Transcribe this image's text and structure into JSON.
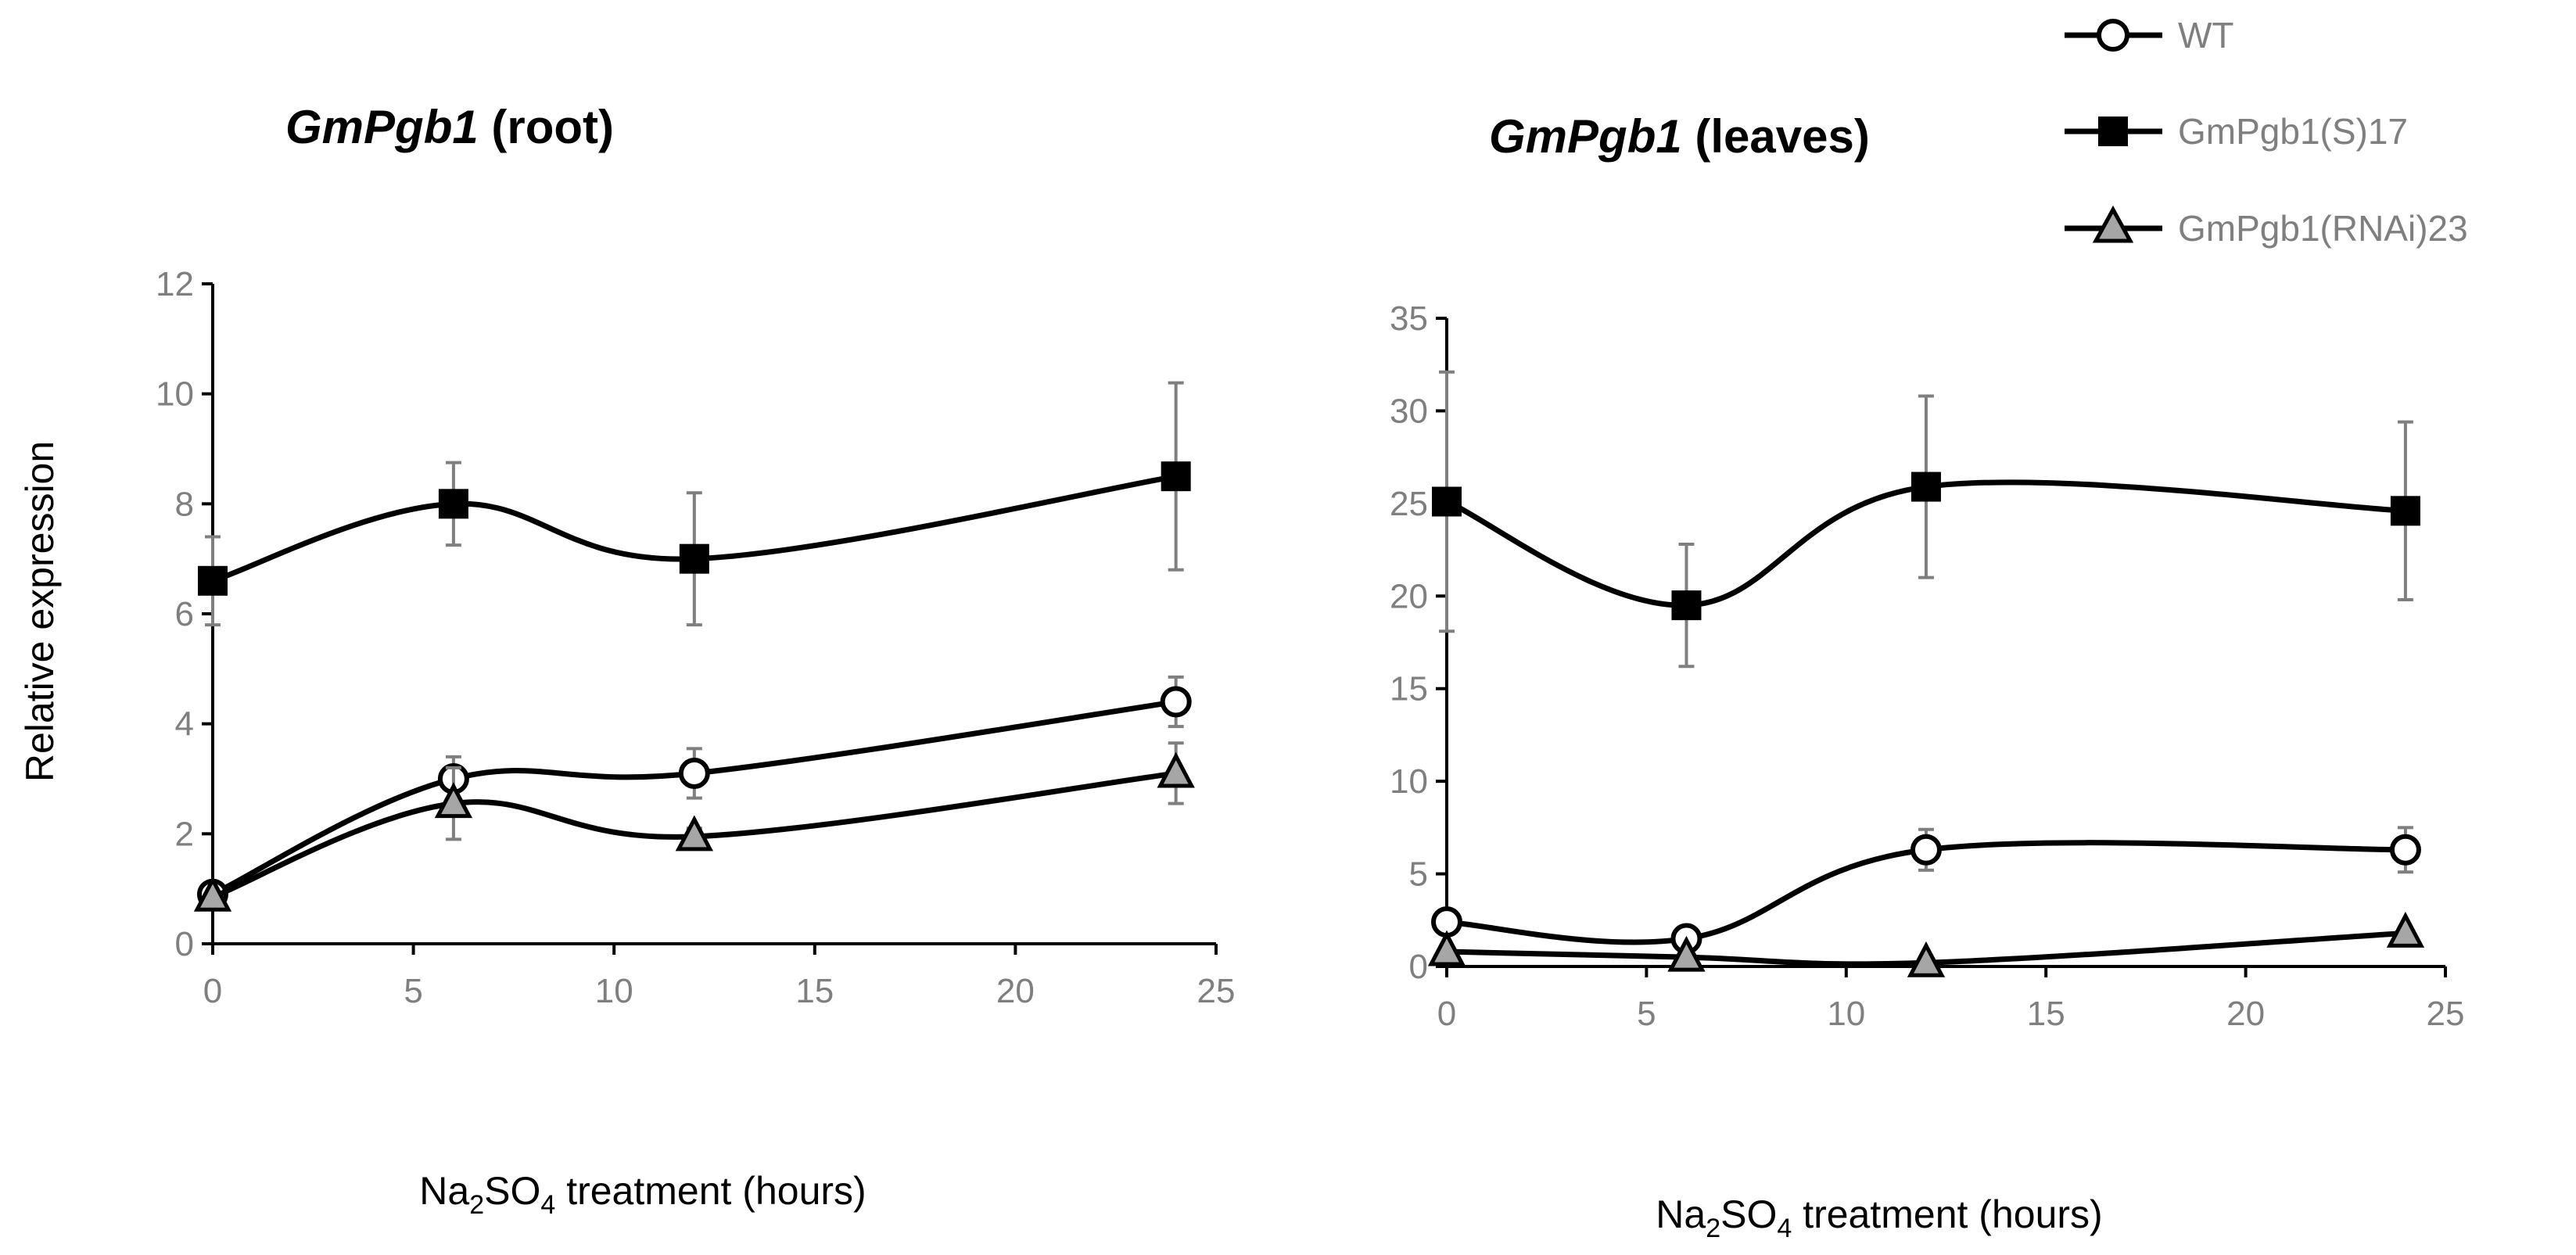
{
  "legend": [
    {
      "name": "WT",
      "marker": "circle",
      "fill": "#ffffff"
    },
    {
      "name": "GmPgb1(S)17",
      "marker": "square",
      "fill": "#000000"
    },
    {
      "name": "GmPgb1(RNAi)23",
      "marker": "triangle",
      "fill": "#a6a6a6"
    }
  ],
  "colors": {
    "line": "#000000",
    "axis": "#000000",
    "tick_text": "#7f7f7f",
    "error_bar": "#7f7f7f"
  },
  "chart_data": [
    {
      "type": "line",
      "title_italic": "GmPgb1",
      "title_rest": " (root)",
      "xlabel_prefix": "Na",
      "xlabel_sub1": "2",
      "xlabel_mid": "SO",
      "xlabel_sub2": "4",
      "xlabel_rest": " treatment (hours)",
      "ylabel": "Relative expression",
      "xlim": [
        0,
        25
      ],
      "ylim": [
        0,
        12
      ],
      "xticks": [
        0,
        5,
        10,
        15,
        20,
        25
      ],
      "yticks": [
        0,
        2,
        4,
        6,
        8,
        10,
        12
      ],
      "x": [
        0,
        6,
        12,
        24
      ],
      "series": [
        {
          "name": "WT",
          "values": [
            0.9,
            3.0,
            3.1,
            4.4
          ],
          "errors": [
            0.1,
            0.4,
            0.45,
            0.45
          ]
        },
        {
          "name": "GmPgb1(S)17",
          "values": [
            6.6,
            8.0,
            7.0,
            8.5
          ],
          "errors": [
            0.8,
            0.75,
            1.2,
            1.7
          ]
        },
        {
          "name": "GmPgb1(RNAi)23",
          "values": [
            0.85,
            2.55,
            1.95,
            3.1
          ],
          "errors": [
            0.1,
            0.65,
            0.15,
            0.55
          ]
        }
      ]
    },
    {
      "type": "line",
      "title_italic": "GmPgb1",
      "title_rest": " (leaves)",
      "xlabel_prefix": "Na",
      "xlabel_sub1": "2",
      "xlabel_mid": "SO",
      "xlabel_sub2": "4",
      "xlabel_rest": " treatment (hours)",
      "ylabel": "",
      "xlim": [
        0,
        25
      ],
      "ylim": [
        0,
        35
      ],
      "xticks": [
        0,
        5,
        10,
        15,
        20,
        25
      ],
      "yticks": [
        0,
        5,
        10,
        15,
        20,
        25,
        30,
        35
      ],
      "x": [
        0,
        6,
        12,
        24
      ],
      "series": [
        {
          "name": "WT",
          "values": [
            2.4,
            1.5,
            6.3,
            6.3
          ],
          "errors": [
            0.3,
            0.4,
            1.1,
            1.2
          ]
        },
        {
          "name": "GmPgb1(S)17",
          "values": [
            25.1,
            19.5,
            25.9,
            24.6
          ],
          "errors": [
            7.0,
            3.3,
            4.9,
            4.8
          ]
        },
        {
          "name": "GmPgb1(RNAi)23",
          "values": [
            0.8,
            0.5,
            0.2,
            1.8
          ],
          "errors": [
            0.1,
            0.1,
            0.1,
            0.2
          ]
        }
      ]
    }
  ]
}
